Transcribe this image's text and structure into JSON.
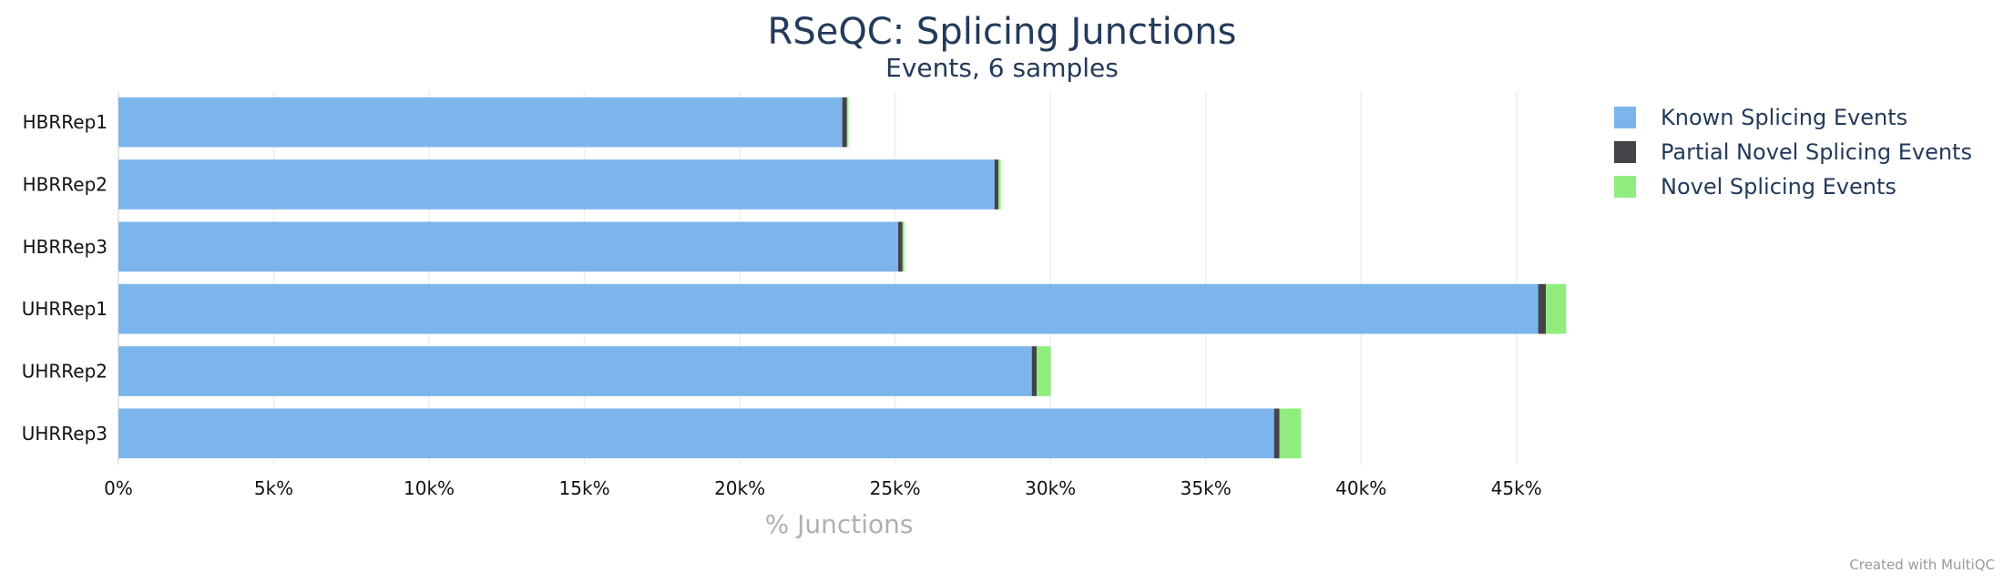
{
  "chart_data": {
    "type": "bar",
    "orientation": "horizontal",
    "stacked": true,
    "title": "RSeQC: Splicing Junctions",
    "subtitle": "Events, 6 samples",
    "xlabel": "% Junctions",
    "ylabel": "",
    "xlim": [
      0,
      47.5
    ],
    "x_ticks": [
      0,
      5,
      10,
      15,
      20,
      25,
      30,
      35,
      40,
      45
    ],
    "x_tick_labels": [
      "0%",
      "5k%",
      "10k%",
      "15k%",
      "20k%",
      "25k%",
      "30k%",
      "35k%",
      "40k%",
      "45k%"
    ],
    "grid": true,
    "legend_position": "top-right",
    "categories": [
      "HBRRep1",
      "HBRRep2",
      "HBRRep3",
      "UHRRep1",
      "UHRRep2",
      "UHRRep3"
    ],
    "series": [
      {
        "name": "Known Splicing Events",
        "color": "#7cb5ec",
        "values": [
          23.3,
          28.2,
          25.1,
          45.7,
          29.4,
          37.2
        ]
      },
      {
        "name": "Partial Novel Splicing Events",
        "color": "#434348",
        "values": [
          0.15,
          0.13,
          0.14,
          0.25,
          0.16,
          0.17
        ]
      },
      {
        "name": "Novel Splicing Events",
        "color": "#90ed7d",
        "values": [
          0.05,
          0.07,
          0.06,
          0.65,
          0.45,
          0.7
        ]
      }
    ],
    "credit": "Created with MultiQC"
  }
}
